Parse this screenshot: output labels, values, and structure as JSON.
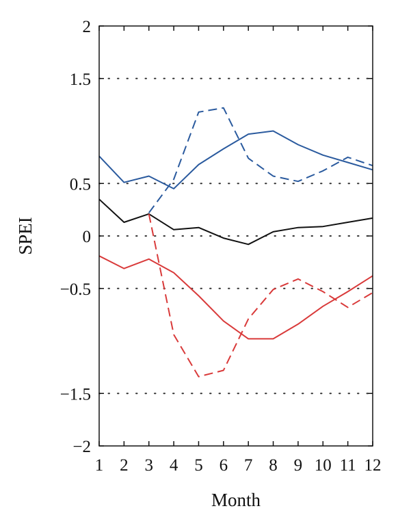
{
  "chart_data": {
    "type": "line",
    "title": "",
    "xlabel": "Month",
    "ylabel": "SPEI",
    "xlim": [
      1,
      12
    ],
    "ylim": [
      -2,
      2
    ],
    "x_ticks": [
      1,
      2,
      3,
      4,
      5,
      6,
      7,
      8,
      9,
      10,
      11,
      12
    ],
    "y_ticks": [
      {
        "value": 2,
        "label": "2"
      },
      {
        "value": 1.5,
        "label": "1.5"
      },
      {
        "value": 0.5,
        "label": "0.5"
      },
      {
        "value": 0,
        "label": "0"
      },
      {
        "value": -0.5,
        "label": "−0.5"
      },
      {
        "value": -1.5,
        "label": "−1.5"
      },
      {
        "value": -2,
        "label": "−2"
      }
    ],
    "grid_y": [
      1.5,
      0.5,
      0,
      -0.5,
      -1.5
    ],
    "legend": "none",
    "series": [
      {
        "color": "#2a5a9e",
        "style": "solid",
        "x": [
          1,
          2,
          3,
          4,
          5,
          6,
          7,
          8,
          9,
          10,
          11,
          12
        ],
        "y": [
          0.76,
          0.51,
          0.57,
          0.45,
          0.68,
          0.83,
          0.97,
          1.0,
          0.87,
          0.77,
          0.7,
          0.63
        ]
      },
      {
        "color": "#2a5a9e",
        "style": "dashed",
        "x": [
          3,
          4,
          5,
          6,
          7,
          8,
          9,
          10,
          11,
          12
        ],
        "y": [
          0.22,
          0.54,
          1.18,
          1.22,
          0.74,
          0.57,
          0.52,
          0.62,
          0.75,
          0.67
        ]
      },
      {
        "color": "#111111",
        "style": "solid",
        "x": [
          1,
          2,
          3,
          4,
          5,
          6,
          7,
          8,
          9,
          10,
          11,
          12
        ],
        "y": [
          0.35,
          0.13,
          0.21,
          0.06,
          0.08,
          -0.02,
          -0.08,
          0.04,
          0.08,
          0.09,
          0.13,
          0.17
        ]
      },
      {
        "color": "#d93a3a",
        "style": "solid",
        "x": [
          1,
          2,
          3,
          4,
          5,
          6,
          7,
          8,
          9,
          10,
          11,
          12
        ],
        "y": [
          -0.19,
          -0.31,
          -0.22,
          -0.35,
          -0.57,
          -0.81,
          -0.98,
          -0.98,
          -0.84,
          -0.67,
          -0.53,
          -0.38
        ]
      },
      {
        "color": "#d93a3a",
        "style": "dashed",
        "x": [
          3,
          4,
          5,
          6,
          7,
          8,
          9,
          10,
          11,
          12
        ],
        "y": [
          0.21,
          -0.94,
          -1.34,
          -1.28,
          -0.79,
          -0.51,
          -0.41,
          -0.53,
          -0.68,
          -0.54
        ]
      }
    ]
  }
}
